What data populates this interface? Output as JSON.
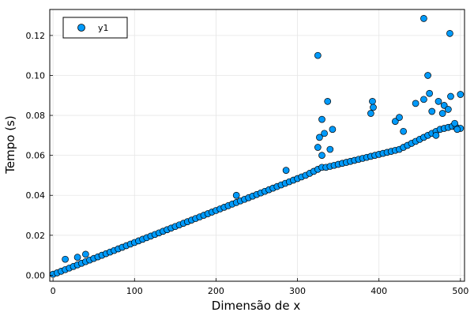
{
  "chart_data": {
    "type": "scatter",
    "title": "",
    "xlabel": "Dimensão de x",
    "ylabel": "Tempo (s)",
    "xlim": [
      -4,
      505
    ],
    "ylim": [
      -0.003,
      0.133
    ],
    "xticks": [
      0,
      100,
      200,
      300,
      400,
      500
    ],
    "xtick_labels": [
      "0",
      "100",
      "200",
      "300",
      "400",
      "500"
    ],
    "yticks": [
      0.0,
      0.02,
      0.04,
      0.06,
      0.08,
      0.1,
      0.12
    ],
    "ytick_labels": [
      "0.00",
      "0.02",
      "0.04",
      "0.06",
      "0.08",
      "0.10",
      "0.12"
    ],
    "grid": true,
    "legend": {
      "position": "top-left",
      "entries": [
        "y1"
      ]
    },
    "colors": {
      "series": "#009AFA",
      "marker_edge": "#000000",
      "grid": "#e6e6e6",
      "frame": "#000000"
    },
    "series": [
      {
        "name": "y1",
        "x": [
          0,
          5,
          10,
          15,
          20,
          25,
          30,
          35,
          40,
          45,
          50,
          55,
          60,
          65,
          70,
          75,
          80,
          85,
          90,
          95,
          100,
          105,
          110,
          115,
          120,
          125,
          130,
          135,
          140,
          145,
          150,
          155,
          160,
          165,
          170,
          175,
          180,
          185,
          190,
          195,
          200,
          205,
          210,
          215,
          220,
          225,
          230,
          235,
          240,
          245,
          250,
          255,
          260,
          265,
          270,
          275,
          280,
          285,
          290,
          295,
          300,
          305,
          310,
          315,
          320,
          325,
          330,
          335,
          340,
          345,
          350,
          355,
          360,
          365,
          370,
          375,
          380,
          385,
          390,
          395,
          400,
          405,
          410,
          415,
          420,
          425,
          430,
          435,
          440,
          445,
          450,
          455,
          460,
          465,
          470,
          475,
          480,
          485,
          490,
          495,
          500,
          15,
          30,
          40,
          225,
          286,
          325,
          327,
          330,
          333,
          337,
          340,
          343,
          392,
          393,
          390,
          420,
          425,
          430,
          445,
          455,
          460,
          462,
          465,
          470,
          473,
          478,
          480,
          485,
          488,
          493,
          496,
          500,
          325,
          330,
          455,
          487
        ],
        "y": [
          0.0005,
          0.0012,
          0.002,
          0.0028,
          0.0036,
          0.0044,
          0.0052,
          0.006,
          0.0068,
          0.0076,
          0.0084,
          0.0092,
          0.01,
          0.0108,
          0.0116,
          0.0124,
          0.0132,
          0.014,
          0.0148,
          0.0156,
          0.0164,
          0.0172,
          0.018,
          0.0188,
          0.0196,
          0.0204,
          0.0212,
          0.022,
          0.0228,
          0.0236,
          0.0244,
          0.0252,
          0.026,
          0.0268,
          0.0276,
          0.0284,
          0.0292,
          0.03,
          0.0308,
          0.0316,
          0.0324,
          0.0332,
          0.034,
          0.0348,
          0.0356,
          0.0364,
          0.0372,
          0.038,
          0.0388,
          0.0396,
          0.0404,
          0.0412,
          0.042,
          0.0428,
          0.0436,
          0.0444,
          0.0452,
          0.046,
          0.0468,
          0.0476,
          0.0484,
          0.0492,
          0.05,
          0.051,
          0.052,
          0.053,
          0.054,
          0.054,
          0.0545,
          0.055,
          0.0555,
          0.056,
          0.0565,
          0.057,
          0.0575,
          0.058,
          0.0585,
          0.059,
          0.0595,
          0.06,
          0.0605,
          0.061,
          0.0615,
          0.062,
          0.0625,
          0.063,
          0.064,
          0.065,
          0.066,
          0.067,
          0.068,
          0.069,
          0.07,
          0.071,
          0.072,
          0.073,
          0.0735,
          0.074,
          0.0745,
          0.074,
          0.0735,
          0.008,
          0.009,
          0.0105,
          0.04,
          0.0525,
          0.064,
          0.069,
          0.078,
          0.071,
          0.087,
          0.063,
          0.073,
          0.087,
          0.084,
          0.081,
          0.077,
          0.079,
          0.072,
          0.086,
          0.088,
          0.1,
          0.091,
          0.082,
          0.07,
          0.087,
          0.081,
          0.085,
          0.083,
          0.0895,
          0.076,
          0.073,
          0.0905,
          0.11,
          0.06,
          0.1285,
          0.121
        ]
      }
    ]
  }
}
